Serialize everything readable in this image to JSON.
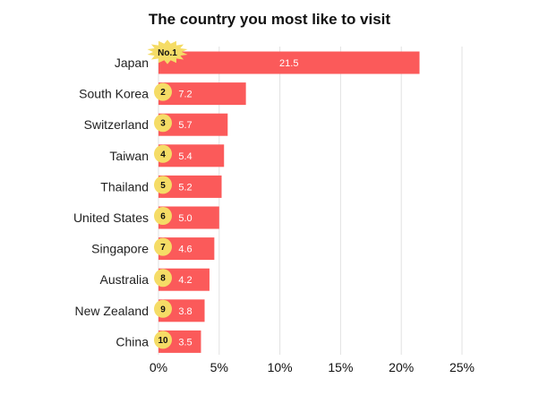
{
  "chart_data": {
    "type": "bar",
    "orientation": "horizontal",
    "title": "The country you most like to visit",
    "categories": [
      "Japan",
      "South Korea",
      "Switzerland",
      "Taiwan",
      "Thailand",
      "United States",
      "Singapore",
      "Australia",
      "New Zealand",
      "China"
    ],
    "values": [
      21.5,
      7.2,
      5.7,
      5.4,
      5.2,
      5.0,
      4.6,
      4.2,
      3.8,
      3.5
    ],
    "value_labels": [
      "21.5",
      "7.2",
      "5.7",
      "5.4",
      "5.2",
      "5.0",
      "4.6",
      "4.2",
      "3.8",
      "3.5"
    ],
    "ranks": [
      "No.1",
      "2",
      "3",
      "4",
      "5",
      "6",
      "7",
      "8",
      "9",
      "10"
    ],
    "xlim": [
      0,
      25
    ],
    "xticks": [
      0,
      5,
      10,
      15,
      20,
      25
    ],
    "xtick_labels": [
      "0%",
      "5%",
      "10%",
      "15%",
      "20%",
      "25%"
    ],
    "grid": "vertical",
    "colors": {
      "bar": "#fb5a5a",
      "badge": "#f5dc66",
      "grid": "#e2e2e2"
    }
  }
}
